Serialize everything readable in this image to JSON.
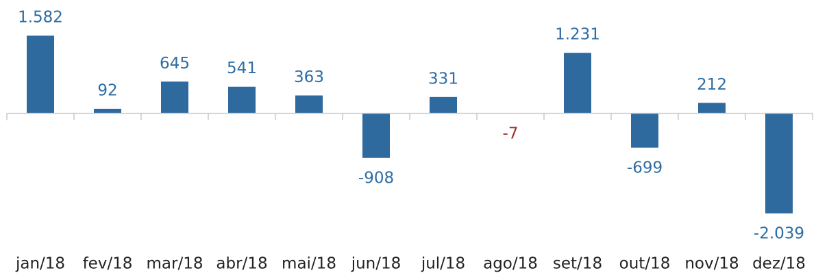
{
  "chart_data": {
    "type": "bar",
    "categories": [
      "jan/18",
      "fev/18",
      "mar/18",
      "abr/18",
      "mai/18",
      "jun/18",
      "jul/18",
      "ago/18",
      "set/18",
      "out/18",
      "nov/18",
      "dez/18"
    ],
    "values": [
      1582,
      92,
      645,
      541,
      363,
      -908,
      331,
      -7,
      1231,
      -699,
      212,
      -2039
    ],
    "value_labels": [
      "1.582",
      "92",
      "645",
      "541",
      "363",
      "-908",
      "331",
      "-7",
      "1.231",
      "-699",
      "212",
      "-2.039"
    ],
    "color": "#2e6a9e",
    "label_colors": [
      "#2e6da4",
      "#2e6da4",
      "#2e6da4",
      "#2e6da4",
      "#2e6da4",
      "#2e6da4",
      "#2e6da4",
      "#a3322c",
      "#2e6da4",
      "#2e6da4",
      "#2e6da4",
      "#2e6da4"
    ]
  }
}
